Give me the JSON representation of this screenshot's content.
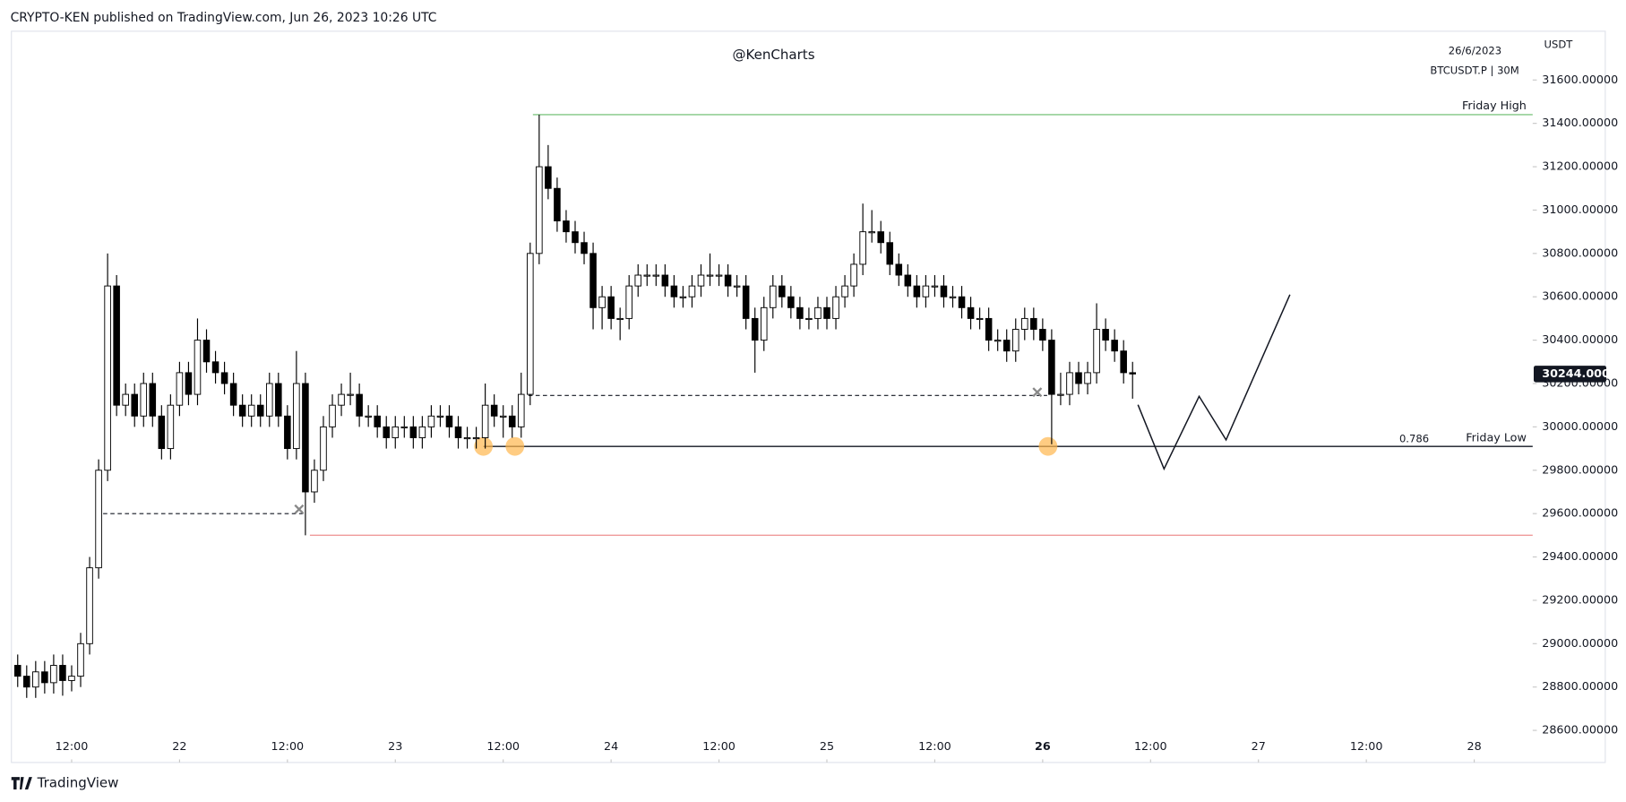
{
  "chart_data": {
    "type": "candlestick",
    "published": "CRYPTO-KEN published on TradingView.com, Jun 26, 2023 10:26 UTC",
    "title": "@KenCharts",
    "date": "26/6/2023",
    "symbol": "BTCUSDT.P | 30M",
    "y_unit": "USDT",
    "brand": "TradingView",
    "xlim": [
      5.3,
      174.5
    ],
    "ylim": [
      28452,
      31825
    ],
    "xticks": [
      {
        "value": 12,
        "label": "12:00"
      },
      {
        "value": 24,
        "label": "22"
      },
      {
        "value": 36,
        "label": "12:00"
      },
      {
        "value": 48,
        "label": "23"
      },
      {
        "value": 60,
        "label": "12:00"
      },
      {
        "value": 72,
        "label": "24"
      },
      {
        "value": 84,
        "label": "12:00"
      },
      {
        "value": 96,
        "label": "25"
      },
      {
        "value": 108,
        "label": "12:00"
      },
      {
        "value": 120,
        "label": "26"
      },
      {
        "value": 132,
        "label": "12:00"
      },
      {
        "value": 144,
        "label": "27"
      },
      {
        "value": 156,
        "label": "12:00"
      },
      {
        "value": 168,
        "label": "28"
      }
    ],
    "yticks": [
      {
        "value": 28600,
        "label": "28600.00000"
      },
      {
        "value": 28800,
        "label": "28800.00000"
      },
      {
        "value": 29000,
        "label": "29000.00000"
      },
      {
        "value": 29200,
        "label": "29200.00000"
      },
      {
        "value": 29400,
        "label": "29400.00000"
      },
      {
        "value": 29600,
        "label": "29600.00000"
      },
      {
        "value": 29800,
        "label": "29800.00000"
      },
      {
        "value": 30000,
        "label": "30000.00000"
      },
      {
        "value": 30200,
        "label": "30200.00000"
      },
      {
        "value": 30400,
        "label": "30400.00000"
      },
      {
        "value": 30600,
        "label": "30600.00000"
      },
      {
        "value": 30800,
        "label": "30800.00000"
      },
      {
        "value": 31000,
        "label": "31000.00000"
      },
      {
        "value": 31200,
        "label": "31200.00000"
      },
      {
        "value": 31400,
        "label": "31400.00000"
      },
      {
        "value": 31600,
        "label": "31600.00000"
      }
    ],
    "up_color": "#ffffff",
    "down_color": "#000000",
    "x": [
      6,
      7,
      8,
      9,
      10,
      11,
      12,
      13,
      14,
      15,
      16,
      17,
      18,
      19,
      20,
      21,
      22,
      23,
      24,
      25,
      26,
      27,
      28,
      29,
      30,
      31,
      32,
      33,
      34,
      35,
      36,
      37,
      38,
      39,
      40,
      41,
      42,
      43,
      44,
      45,
      46,
      47,
      48,
      49,
      50,
      51,
      52,
      53,
      54,
      55,
      56,
      57,
      58,
      59,
      60,
      61,
      62,
      63,
      64,
      65,
      66,
      67,
      68,
      69,
      70,
      71,
      72,
      73,
      74,
      75,
      76,
      77,
      78,
      79,
      80,
      81,
      82,
      83,
      84,
      85,
      86,
      87,
      88,
      89,
      90,
      91,
      92,
      93,
      94,
      95,
      96,
      97,
      98,
      99,
      100,
      101,
      102,
      103,
      104,
      105,
      106,
      107,
      108,
      109,
      110,
      111,
      112,
      113,
      114,
      115,
      116,
      117,
      118,
      119,
      120,
      121,
      122,
      123,
      124,
      125,
      126,
      127,
      128,
      129,
      130
    ],
    "ohlc": [
      [
        28900,
        28950,
        28800,
        28850
      ],
      [
        28850,
        28900,
        28750,
        28800
      ],
      [
        28800,
        28920,
        28750,
        28870
      ],
      [
        28870,
        28920,
        28770,
        28820
      ],
      [
        28820,
        28950,
        28770,
        28900
      ],
      [
        28900,
        28950,
        28760,
        28830
      ],
      [
        28830,
        28900,
        28780,
        28850
      ],
      [
        28850,
        29050,
        28800,
        29000
      ],
      [
        29000,
        29400,
        28950,
        29350
      ],
      [
        29350,
        29850,
        29300,
        29800
      ],
      [
        29800,
        30800,
        29750,
        30650
      ],
      [
        30650,
        30700,
        30050,
        30100
      ],
      [
        30100,
        30200,
        30050,
        30150
      ],
      [
        30150,
        30200,
        30000,
        30050
      ],
      [
        30050,
        30250,
        30000,
        30200
      ],
      [
        30200,
        30250,
        30000,
        30050
      ],
      [
        30050,
        30100,
        29850,
        29900
      ],
      [
        29900,
        30150,
        29850,
        30100
      ],
      [
        30100,
        30300,
        30050,
        30250
      ],
      [
        30250,
        30300,
        30100,
        30150
      ],
      [
        30150,
        30500,
        30100,
        30400
      ],
      [
        30400,
        30450,
        30250,
        30300
      ],
      [
        30300,
        30350,
        30200,
        30250
      ],
      [
        30250,
        30300,
        30150,
        30200
      ],
      [
        30200,
        30250,
        30050,
        30100
      ],
      [
        30100,
        30150,
        30000,
        30050
      ],
      [
        30050,
        30150,
        30000,
        30100
      ],
      [
        30100,
        30150,
        30000,
        30050
      ],
      [
        30050,
        30250,
        30000,
        30200
      ],
      [
        30200,
        30250,
        30000,
        30050
      ],
      [
        30050,
        30100,
        29850,
        29900
      ],
      [
        29900,
        30350,
        29850,
        30200
      ],
      [
        30200,
        30250,
        29500,
        29700
      ],
      [
        29700,
        29850,
        29650,
        29800
      ],
      [
        29800,
        30050,
        29750,
        30000
      ],
      [
        30000,
        30150,
        29950,
        30100
      ],
      [
        30100,
        30200,
        30050,
        30150
      ],
      [
        30150,
        30250,
        30100,
        30150
      ],
      [
        30150,
        30200,
        30000,
        30050
      ],
      [
        30050,
        30100,
        30000,
        30050
      ],
      [
        30050,
        30100,
        29950,
        30000
      ],
      [
        30000,
        30050,
        29900,
        29950
      ],
      [
        29950,
        30050,
        29900,
        30000
      ],
      [
        30000,
        30050,
        29950,
        30000
      ],
      [
        30000,
        30050,
        29900,
        29950
      ],
      [
        29950,
        30050,
        29900,
        30000
      ],
      [
        30000,
        30100,
        29950,
        30050
      ],
      [
        30050,
        30100,
        30000,
        30050
      ],
      [
        30050,
        30100,
        29950,
        30000
      ],
      [
        30000,
        30050,
        29900,
        29950
      ],
      [
        29950,
        30000,
        29900,
        29950
      ],
      [
        29950,
        30000,
        29900,
        29950
      ],
      [
        29950,
        30200,
        29900,
        30100
      ],
      [
        30100,
        30150,
        30000,
        30050
      ],
      [
        30050,
        30100,
        29950,
        30050
      ],
      [
        30050,
        30100,
        29950,
        30000
      ],
      [
        30000,
        30250,
        29950,
        30150
      ],
      [
        30150,
        30850,
        30100,
        30800
      ],
      [
        30800,
        31440,
        30750,
        31200
      ],
      [
        31200,
        31300,
        31050,
        31100
      ],
      [
        31100,
        31150,
        30900,
        30950
      ],
      [
        30950,
        31000,
        30850,
        30900
      ],
      [
        30900,
        30950,
        30800,
        30850
      ],
      [
        30850,
        30900,
        30750,
        30800
      ],
      [
        30800,
        30850,
        30450,
        30550
      ],
      [
        30550,
        30650,
        30450,
        30600
      ],
      [
        30600,
        30650,
        30450,
        30500
      ],
      [
        30500,
        30550,
        30400,
        30500
      ],
      [
        30500,
        30700,
        30450,
        30650
      ],
      [
        30650,
        30750,
        30600,
        30700
      ],
      [
        30700,
        30750,
        30650,
        30700
      ],
      [
        30700,
        30750,
        30650,
        30700
      ],
      [
        30700,
        30750,
        30600,
        30650
      ],
      [
        30650,
        30700,
        30550,
        30600
      ],
      [
        30600,
        30650,
        30550,
        30600
      ],
      [
        30600,
        30700,
        30550,
        30650
      ],
      [
        30650,
        30750,
        30600,
        30700
      ],
      [
        30700,
        30800,
        30650,
        30700
      ],
      [
        30700,
        30750,
        30650,
        30700
      ],
      [
        30700,
        30750,
        30600,
        30650
      ],
      [
        30650,
        30700,
        30600,
        30650
      ],
      [
        30650,
        30700,
        30450,
        30500
      ],
      [
        30500,
        30550,
        30250,
        30400
      ],
      [
        30400,
        30600,
        30350,
        30550
      ],
      [
        30550,
        30700,
        30500,
        30650
      ],
      [
        30650,
        30700,
        30550,
        30600
      ],
      [
        30600,
        30650,
        30500,
        30550
      ],
      [
        30550,
        30600,
        30450,
        30500
      ],
      [
        30500,
        30550,
        30450,
        30500
      ],
      [
        30500,
        30600,
        30450,
        30550
      ],
      [
        30550,
        30600,
        30450,
        30500
      ],
      [
        30500,
        30650,
        30450,
        30600
      ],
      [
        30600,
        30700,
        30550,
        30650
      ],
      [
        30650,
        30800,
        30600,
        30750
      ],
      [
        30750,
        31030,
        30700,
        30900
      ],
      [
        30900,
        31000,
        30850,
        30900
      ],
      [
        30900,
        30950,
        30800,
        30850
      ],
      [
        30850,
        30900,
        30700,
        30750
      ],
      [
        30750,
        30800,
        30650,
        30700
      ],
      [
        30700,
        30750,
        30600,
        30650
      ],
      [
        30650,
        30700,
        30550,
        30600
      ],
      [
        30600,
        30700,
        30550,
        30650
      ],
      [
        30650,
        30700,
        30600,
        30650
      ],
      [
        30650,
        30700,
        30550,
        30600
      ],
      [
        30600,
        30650,
        30550,
        30600
      ],
      [
        30600,
        30650,
        30500,
        30550
      ],
      [
        30550,
        30600,
        30450,
        30500
      ],
      [
        30500,
        30550,
        30450,
        30500
      ],
      [
        30500,
        30550,
        30350,
        30400
      ],
      [
        30400,
        30450,
        30350,
        30400
      ],
      [
        30400,
        30450,
        30300,
        30350
      ],
      [
        30350,
        30500,
        30300,
        30450
      ],
      [
        30450,
        30550,
        30400,
        30500
      ],
      [
        30500,
        30550,
        30400,
        30450
      ],
      [
        30450,
        30500,
        30350,
        30400
      ],
      [
        30400,
        30450,
        29920,
        30150
      ],
      [
        30150,
        30250,
        30100,
        30150
      ],
      [
        30150,
        30300,
        30100,
        30250
      ],
      [
        30250,
        30300,
        30150,
        30200
      ],
      [
        30200,
        30300,
        30150,
        30250
      ],
      [
        30250,
        30570,
        30200,
        30450
      ],
      [
        30450,
        30500,
        30350,
        30400
      ],
      [
        30400,
        30450,
        30300,
        30350
      ],
      [
        30350,
        30400,
        30200,
        30250
      ],
      [
        30250,
        30300,
        30130,
        30244
      ]
    ],
    "last_price": 30244,
    "last_price_label": "30244.00000",
    "levels": [
      {
        "name": "Friday High",
        "value": 31440,
        "from": 63.3,
        "color": "#81c784"
      },
      {
        "name": "Friday Low",
        "value": 29910,
        "from": 57.8,
        "color": "#131722",
        "label": "0.786"
      },
      {
        "value": 29500,
        "from": 38.5,
        "color": "#ef9a9a"
      }
    ],
    "dashed": [
      {
        "y": 29600,
        "x": [
          15.5,
          38
        ]
      },
      {
        "y": 30145,
        "x": [
          62.8,
          120.5
        ]
      }
    ],
    "crosses": [
      {
        "x": 37.3,
        "y": 29620
      },
      {
        "x": 119.4,
        "y": 30160
      }
    ],
    "circles": [
      {
        "x": 57.8,
        "y": 29910
      },
      {
        "x": 61.3,
        "y": 29910
      },
      {
        "x": 120.6,
        "y": 29910
      }
    ],
    "projection": {
      "x": [
        130.6,
        133.5,
        137.4,
        140.4,
        147.5
      ],
      "y": [
        30102,
        29806,
        30141,
        29940,
        30610
      ]
    }
  }
}
